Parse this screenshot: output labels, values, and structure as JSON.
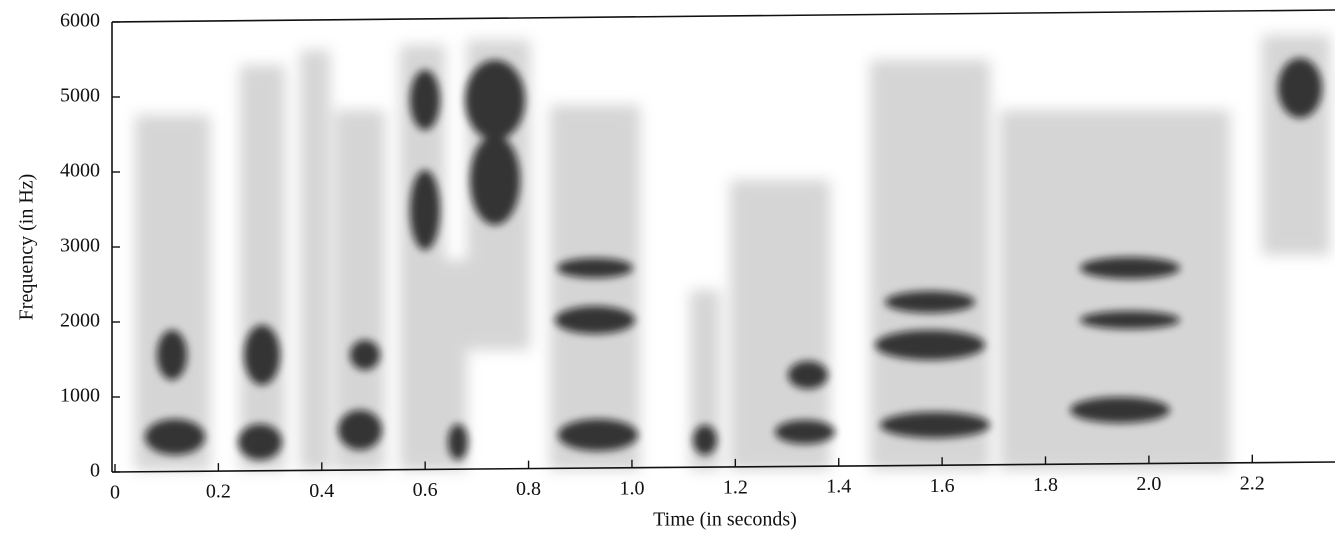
{
  "chart_data": {
    "type": "spectrogram",
    "x_label": "Time (in seconds)",
    "y_label": "Frequency (in Hz)",
    "xlim": [
      0,
      2.36
    ],
    "ylim": [
      0,
      6000
    ],
    "xticks": [
      0,
      0.2,
      0.4,
      0.6,
      0.8,
      {
        "value": 1,
        "label": "1.0"
      },
      1.2,
      1.4,
      1.6,
      1.8,
      {
        "value": 2,
        "label": "2.0"
      },
      2.2
    ],
    "yticks": [
      0,
      1000,
      2000,
      3000,
      4000,
      5000,
      6000
    ]
  }
}
